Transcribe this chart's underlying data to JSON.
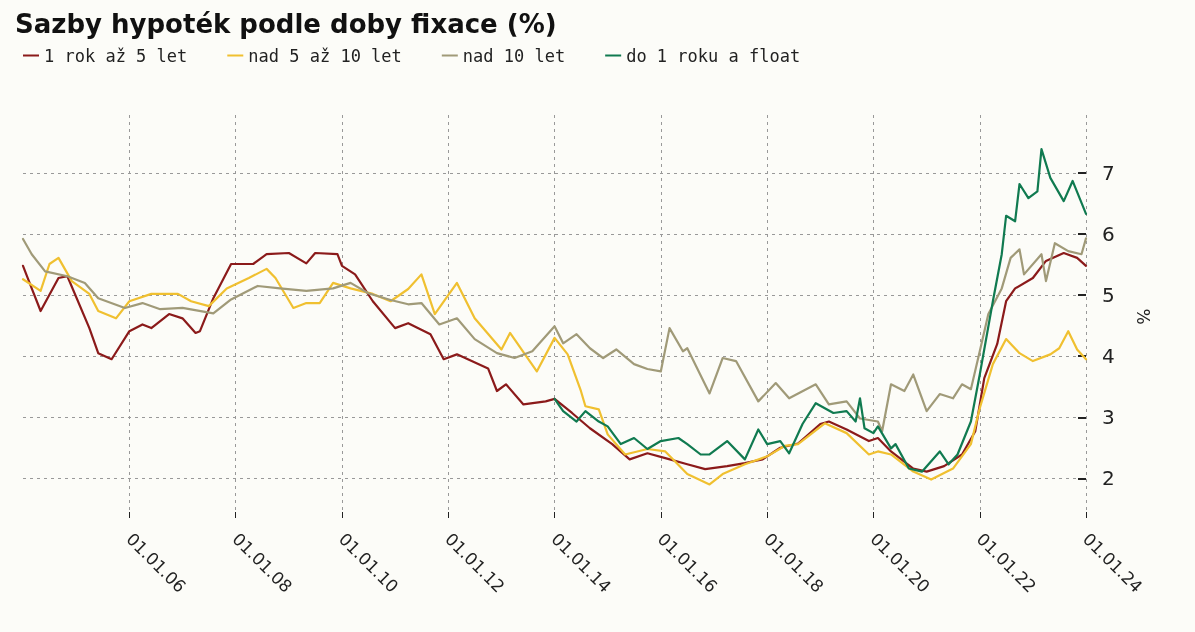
{
  "chart_data": {
    "type": "line",
    "title": "Sazby hypoték podle doby fixace (%)",
    "ylabel": "%",
    "xlim": [
      "2004-01",
      "2024-01"
    ],
    "ylim": [
      1.35,
      7.95
    ],
    "yticks": [
      2,
      3,
      4,
      5,
      6,
      7
    ],
    "xticks": [
      {
        "value": "2006-01-01",
        "label": "01.01.06"
      },
      {
        "value": "2008-01-01",
        "label": "01.01.08"
      },
      {
        "value": "2010-01-01",
        "label": "01.01.10"
      },
      {
        "value": "2012-01-01",
        "label": "01.01.12"
      },
      {
        "value": "2014-01-01",
        "label": "01.01.14"
      },
      {
        "value": "2016-01-01",
        "label": "01.01.16"
      },
      {
        "value": "2018-01-01",
        "label": "01.01.18"
      },
      {
        "value": "2020-01-01",
        "label": "01.01.20"
      },
      {
        "value": "2022-01-01",
        "label": "01.01.22"
      },
      {
        "value": "2024-01-01",
        "label": "01.01.24"
      }
    ],
    "grid": true,
    "legend": "top left",
    "marker": "none",
    "line_style": "solid",
    "series": [
      {
        "name": "1 rok až 5 let",
        "color": "#8b1a1a",
        "x": [
          "2004-01",
          "2004-03",
          "2004-05",
          "2004-09",
          "2004-11",
          "2005-04",
          "2005-06",
          "2005-09",
          "2006-01",
          "2006-04",
          "2006-06",
          "2006-10",
          "2007-01",
          "2007-04",
          "2007-05",
          "2007-08",
          "2007-12",
          "2008-05",
          "2008-08",
          "2009-01",
          "2009-05",
          "2009-07",
          "2009-12",
          "2010-01",
          "2010-04",
          "2010-08",
          "2011-01",
          "2011-04",
          "2011-09",
          "2011-12",
          "2012-03",
          "2012-10",
          "2012-12",
          "2013-02",
          "2013-06",
          "2013-11",
          "2014-01",
          "2014-05",
          "2014-09",
          "2015-02",
          "2015-06",
          "2015-10",
          "2016-02",
          "2016-07",
          "2016-11",
          "2017-04",
          "2017-08",
          "2017-12",
          "2018-04",
          "2018-08",
          "2019-01",
          "2019-03",
          "2019-07",
          "2019-12",
          "2020-02",
          "2020-05",
          "2020-10",
          "2021-01",
          "2021-05",
          "2021-09",
          "2021-12",
          "2022-02",
          "2022-05",
          "2022-07",
          "2022-09",
          "2023-01",
          "2023-04",
          "2023-08",
          "2023-11",
          "2024-01"
        ],
        "values": [
          5.48,
          5.11,
          4.74,
          5.28,
          5.31,
          4.46,
          4.05,
          3.95,
          4.41,
          4.52,
          4.46,
          4.69,
          4.62,
          4.38,
          4.41,
          4.95,
          5.51,
          5.51,
          5.67,
          5.69,
          5.52,
          5.69,
          5.67,
          5.48,
          5.34,
          4.9,
          4.46,
          4.54,
          4.36,
          3.95,
          4.03,
          3.8,
          3.43,
          3.54,
          3.21,
          3.26,
          3.3,
          3.07,
          2.82,
          2.56,
          2.31,
          2.41,
          2.33,
          2.23,
          2.15,
          2.2,
          2.25,
          2.31,
          2.5,
          2.57,
          2.89,
          2.93,
          2.8,
          2.61,
          2.66,
          2.44,
          2.16,
          2.11,
          2.2,
          2.39,
          2.77,
          3.64,
          4.2,
          4.9,
          5.11,
          5.28,
          5.56,
          5.69,
          5.61,
          5.48
        ]
      },
      {
        "name": "nad 5 až 10 let",
        "color": "#f0c030",
        "x": [
          "2004-01",
          "2004-05",
          "2004-07",
          "2004-09",
          "2004-12",
          "2005-04",
          "2005-06",
          "2005-10",
          "2006-01",
          "2006-06",
          "2006-12",
          "2007-03",
          "2007-07",
          "2007-11",
          "2008-04",
          "2008-08",
          "2008-10",
          "2009-02",
          "2009-05",
          "2009-08",
          "2009-11",
          "2010-03",
          "2010-08",
          "2010-12",
          "2011-04",
          "2011-07",
          "2011-10",
          "2012-03",
          "2012-07",
          "2013-01",
          "2013-03",
          "2013-09",
          "2014-01",
          "2014-04",
          "2014-07",
          "2014-08",
          "2014-11",
          "2015-01",
          "2015-05",
          "2015-10",
          "2016-02",
          "2016-07",
          "2016-12",
          "2017-03",
          "2017-08",
          "2018-01",
          "2018-05",
          "2018-08",
          "2019-02",
          "2019-07",
          "2019-12",
          "2020-02",
          "2020-05",
          "2020-10",
          "2021-02",
          "2021-07",
          "2021-11",
          "2022-01",
          "2022-04",
          "2022-07",
          "2022-10",
          "2023-01",
          "2023-05",
          "2023-07",
          "2023-09",
          "2023-11",
          "2024-01"
        ],
        "values": [
          5.26,
          5.07,
          5.51,
          5.61,
          5.23,
          5.02,
          4.74,
          4.62,
          4.9,
          5.02,
          5.02,
          4.9,
          4.82,
          5.11,
          5.28,
          5.43,
          5.28,
          4.79,
          4.87,
          4.87,
          5.2,
          5.11,
          5.02,
          4.9,
          5.1,
          5.34,
          4.69,
          5.2,
          4.62,
          4.11,
          4.38,
          3.75,
          4.3,
          4.03,
          3.43,
          3.18,
          3.13,
          2.72,
          2.39,
          2.48,
          2.44,
          2.07,
          1.9,
          2.07,
          2.23,
          2.36,
          2.53,
          2.56,
          2.9,
          2.74,
          2.39,
          2.44,
          2.39,
          2.11,
          1.98,
          2.16,
          2.56,
          3.15,
          3.87,
          4.28,
          4.05,
          3.92,
          4.03,
          4.13,
          4.41,
          4.11,
          3.95
        ]
      },
      {
        "name": "nad 10 let",
        "color": "#a09a78",
        "x": [
          "2004-01",
          "2004-03",
          "2004-06",
          "2004-11",
          "2005-03",
          "2005-06",
          "2005-12",
          "2006-04",
          "2006-08",
          "2007-01",
          "2007-08",
          "2007-12",
          "2008-06",
          "2008-11",
          "2009-05",
          "2009-11",
          "2010-03",
          "2010-07",
          "2010-12",
          "2011-04",
          "2011-07",
          "2011-11",
          "2012-03",
          "2012-07",
          "2012-12",
          "2013-04",
          "2013-08",
          "2014-01",
          "2014-03",
          "2014-06",
          "2014-09",
          "2014-12",
          "2015-03",
          "2015-07",
          "2015-10",
          "2016-01",
          "2016-03",
          "2016-06",
          "2016-07",
          "2016-12",
          "2017-03",
          "2017-06",
          "2017-11",
          "2018-03",
          "2018-06",
          "2018-12",
          "2019-03",
          "2019-07",
          "2019-10",
          "2020-02",
          "2020-03",
          "2020-05",
          "2020-08",
          "2020-10",
          "2021-01",
          "2021-04",
          "2021-07",
          "2021-09",
          "2021-11",
          "2022-01",
          "2022-03",
          "2022-06",
          "2022-08",
          "2022-10",
          "2022-11",
          "2023-03",
          "2023-04",
          "2023-06",
          "2023-09",
          "2023-12",
          "2024-01"
        ],
        "values": [
          5.92,
          5.67,
          5.39,
          5.31,
          5.2,
          4.95,
          4.79,
          4.87,
          4.77,
          4.79,
          4.7,
          4.93,
          5.15,
          5.11,
          5.07,
          5.11,
          5.2,
          5.03,
          4.92,
          4.85,
          4.87,
          4.52,
          4.62,
          4.28,
          4.05,
          3.97,
          4.08,
          4.49,
          4.21,
          4.36,
          4.13,
          3.97,
          4.11,
          3.87,
          3.79,
          3.75,
          4.46,
          4.08,
          4.13,
          3.39,
          3.97,
          3.92,
          3.26,
          3.56,
          3.31,
          3.54,
          3.21,
          3.26,
          2.98,
          2.93,
          2.77,
          3.54,
          3.43,
          3.7,
          3.1,
          3.38,
          3.31,
          3.54,
          3.46,
          4.08,
          4.69,
          5.11,
          5.61,
          5.75,
          5.34,
          5.67,
          5.23,
          5.85,
          5.72,
          5.67,
          5.93
        ]
      },
      {
        "name": "do 1 roku a float",
        "color": "#107a50",
        "x": [
          "2014-01",
          "2014-03",
          "2014-06",
          "2014-08",
          "2014-11",
          "2015-01",
          "2015-04",
          "2015-07",
          "2015-10",
          "2016-01",
          "2016-05",
          "2016-07",
          "2016-10",
          "2016-12",
          "2017-04",
          "2017-08",
          "2017-11",
          "2018-01",
          "2018-04",
          "2018-06",
          "2018-09",
          "2018-12",
          "2019-04",
          "2019-07",
          "2019-09",
          "2019-10",
          "2019-11",
          "2020-01",
          "2020-02",
          "2020-05",
          "2020-06",
          "2020-09",
          "2020-12",
          "2021-04",
          "2021-06",
          "2021-08",
          "2021-11",
          "2022-01",
          "2022-04",
          "2022-06",
          "2022-07",
          "2022-09",
          "2022-10",
          "2022-12",
          "2023-02",
          "2023-03",
          "2023-05",
          "2023-08",
          "2023-10",
          "2024-01"
        ],
        "values": [
          3.3,
          3.1,
          2.93,
          3.1,
          2.93,
          2.85,
          2.56,
          2.66,
          2.48,
          2.61,
          2.66,
          2.56,
          2.39,
          2.39,
          2.61,
          2.31,
          2.8,
          2.56,
          2.61,
          2.41,
          2.89,
          3.23,
          3.07,
          3.1,
          2.93,
          3.31,
          2.82,
          2.74,
          2.85,
          2.49,
          2.56,
          2.16,
          2.11,
          2.44,
          2.23,
          2.39,
          2.93,
          3.7,
          4.9,
          5.67,
          6.3,
          6.21,
          6.82,
          6.59,
          6.7,
          7.39,
          6.92,
          6.54,
          6.87,
          6.33
        ]
      }
    ]
  }
}
